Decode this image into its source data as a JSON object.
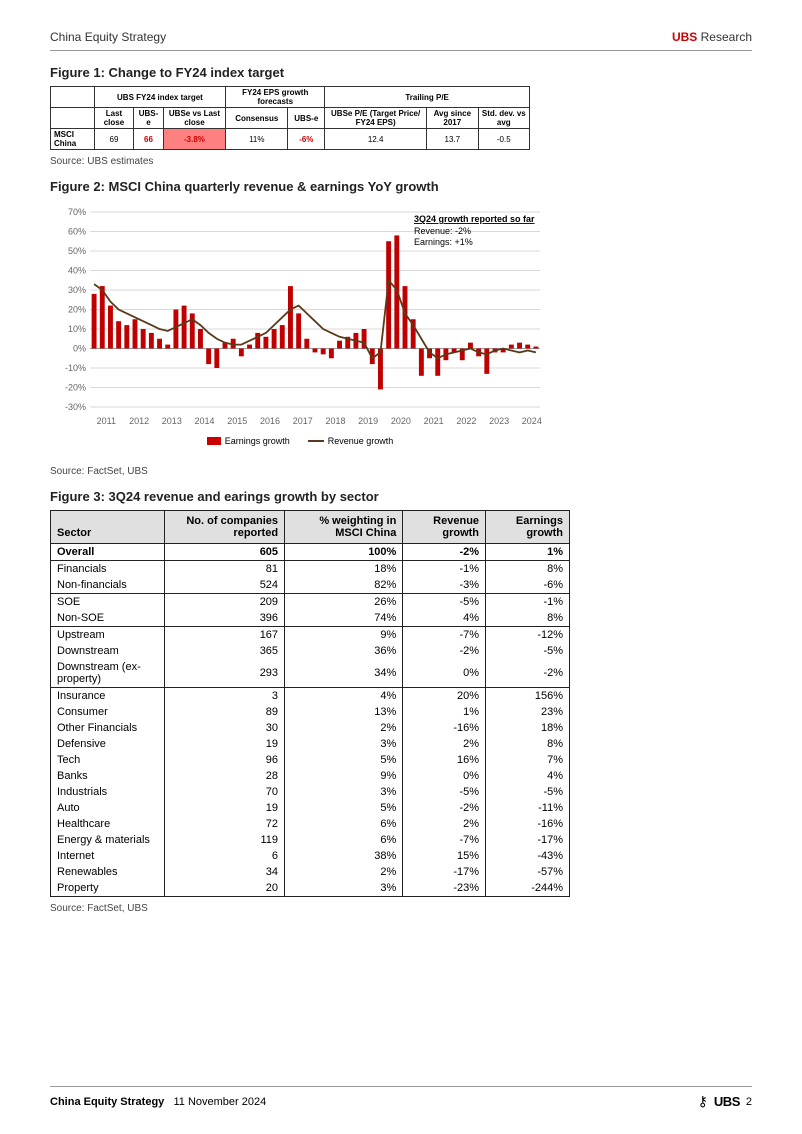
{
  "header": {
    "left": "China Equity Strategy",
    "right_brand": "UBS",
    "right_label": " Research"
  },
  "fig1": {
    "title": "Figure 1: Change to FY24 index target",
    "source": "Source: UBS estimates",
    "group_headers": [
      "",
      "UBS FY24 index target",
      "FY24 EPS growth forecasts",
      "Trailing P/E"
    ],
    "sub_headers": [
      "",
      "Last close",
      "UBS-e",
      "UBSe vs Last close",
      "Consensus",
      "UBS-e",
      "UBSe P/E (Target Price/ FY24 EPS)",
      "Avg since 2017",
      "Std. dev. vs avg"
    ],
    "row": {
      "label": "MSCI China",
      "last_close": "69",
      "ubs_e": "66",
      "ubse_vs": "-3.8%",
      "consensus": "11%",
      "eps_ubse": "-6%",
      "pe_target": "12.4",
      "pe_avg": "13.7",
      "std": "-0.5"
    }
  },
  "fig2": {
    "title": "Figure 2: MSCI China quarterly revenue & earnings YoY growth",
    "source": "Source: FactSet, UBS",
    "legend_bar": "Earnings growth",
    "legend_line": "Revenue growth",
    "annot_title": "3Q24 growth reported so far",
    "annot_rev": "Revenue: -2%",
    "annot_earn": "Earnings: +1%",
    "ylim": [
      -30,
      70
    ],
    "ytick_step": 10,
    "x_years": [
      "2011",
      "2012",
      "2013",
      "2014",
      "2015",
      "2016",
      "2017",
      "2018",
      "2019",
      "2020",
      "2021",
      "2022",
      "2023",
      "2024"
    ],
    "bar_color": "#c00000",
    "line_color": "#5a3a1a",
    "grid_color": "#d9d9d9",
    "bg_color": "#ffffff",
    "earnings": [
      28,
      32,
      22,
      14,
      12,
      15,
      10,
      8,
      5,
      2,
      20,
      22,
      18,
      10,
      -8,
      -10,
      3,
      5,
      -4,
      2,
      8,
      6,
      10,
      12,
      32,
      18,
      5,
      -2,
      -3,
      -5,
      4,
      6,
      8,
      10,
      -8,
      -21,
      55,
      58,
      32,
      15,
      -14,
      -5,
      -14,
      -6,
      -2,
      -6,
      3,
      -4,
      -13,
      -2,
      -2,
      2,
      3,
      2,
      1
    ],
    "revenue": [
      33,
      30,
      24,
      20,
      18,
      16,
      14,
      12,
      10,
      9,
      11,
      13,
      15,
      12,
      8,
      5,
      3,
      2,
      2,
      4,
      6,
      8,
      12,
      16,
      20,
      22,
      18,
      14,
      10,
      8,
      6,
      5,
      4,
      3,
      -5,
      -2,
      35,
      30,
      18,
      12,
      5,
      -2,
      -5,
      -3,
      -2,
      -1,
      0,
      -2,
      -3,
      -1,
      0,
      -1,
      -2,
      -1,
      -2
    ]
  },
  "fig3": {
    "title": "Figure 3: 3Q24 revenue and earings growth by sector",
    "source": "Source: FactSet, UBS",
    "columns": [
      "Sector",
      "No. of companies reported",
      "% weighting in MSCI China",
      "Revenue growth",
      "Earnings growth"
    ],
    "rows": [
      {
        "sector": "Overall",
        "n": "605",
        "w": "100%",
        "rev": "-2%",
        "earn": "1%",
        "css": "overall"
      },
      {
        "sector": "Financials",
        "n": "81",
        "w": "18%",
        "rev": "-1%",
        "earn": "8%",
        "css": ""
      },
      {
        "sector": "Non-financials",
        "n": "524",
        "w": "82%",
        "rev": "-3%",
        "earn": "-6%",
        "css": "sep"
      },
      {
        "sector": "SOE",
        "n": "209",
        "w": "26%",
        "rev": "-5%",
        "earn": "-1%",
        "css": ""
      },
      {
        "sector": "Non-SOE",
        "n": "396",
        "w": "74%",
        "rev": "4%",
        "earn": "8%",
        "css": "sep"
      },
      {
        "sector": "Upstream",
        "n": "167",
        "w": "9%",
        "rev": "-7%",
        "earn": "-12%",
        "css": ""
      },
      {
        "sector": "Downstream",
        "n": "365",
        "w": "36%",
        "rev": "-2%",
        "earn": "-5%",
        "css": ""
      },
      {
        "sector": "Downstream (ex-property)",
        "n": "293",
        "w": "34%",
        "rev": "0%",
        "earn": "-2%",
        "css": "sep"
      },
      {
        "sector": "Insurance",
        "n": "3",
        "w": "4%",
        "rev": "20%",
        "earn": "156%",
        "css": ""
      },
      {
        "sector": "Consumer",
        "n": "89",
        "w": "13%",
        "rev": "1%",
        "earn": "23%",
        "css": ""
      },
      {
        "sector": "Other Financials",
        "n": "30",
        "w": "2%",
        "rev": "-16%",
        "earn": "18%",
        "css": ""
      },
      {
        "sector": "Defensive",
        "n": "19",
        "w": "3%",
        "rev": "2%",
        "earn": "8%",
        "css": ""
      },
      {
        "sector": "Tech",
        "n": "96",
        "w": "5%",
        "rev": "16%",
        "earn": "7%",
        "css": ""
      },
      {
        "sector": "Banks",
        "n": "28",
        "w": "9%",
        "rev": "0%",
        "earn": "4%",
        "css": ""
      },
      {
        "sector": "Industrials",
        "n": "70",
        "w": "3%",
        "rev": "-5%",
        "earn": "-5%",
        "css": ""
      },
      {
        "sector": "Auto",
        "n": "19",
        "w": "5%",
        "rev": "-2%",
        "earn": "-11%",
        "css": ""
      },
      {
        "sector": "Healthcare",
        "n": "72",
        "w": "6%",
        "rev": "2%",
        "earn": "-16%",
        "css": ""
      },
      {
        "sector": "Energy & materials",
        "n": "119",
        "w": "6%",
        "rev": "-7%",
        "earn": "-17%",
        "css": ""
      },
      {
        "sector": "Internet",
        "n": "6",
        "w": "38%",
        "rev": "15%",
        "earn": "-43%",
        "css": ""
      },
      {
        "sector": "Renewables",
        "n": "34",
        "w": "2%",
        "rev": "-17%",
        "earn": "-57%",
        "css": ""
      },
      {
        "sector": "Property",
        "n": "20",
        "w": "3%",
        "rev": "-23%",
        "earn": "-244%",
        "css": "last"
      }
    ]
  },
  "footer": {
    "bold": "China Equity Strategy",
    "date": "11 November 2024",
    "brand": "UBS",
    "page": "2"
  }
}
